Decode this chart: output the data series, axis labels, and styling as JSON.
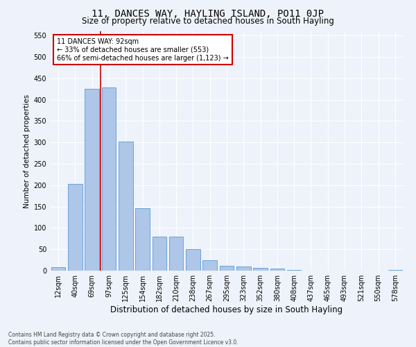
{
  "title": "11, DANCES WAY, HAYLING ISLAND, PO11 0JP",
  "subtitle": "Size of property relative to detached houses in South Hayling",
  "xlabel": "Distribution of detached houses by size in South Hayling",
  "ylabel": "Number of detached properties",
  "bar_labels": [
    "12sqm",
    "40sqm",
    "69sqm",
    "97sqm",
    "125sqm",
    "154sqm",
    "182sqm",
    "210sqm",
    "238sqm",
    "267sqm",
    "295sqm",
    "323sqm",
    "352sqm",
    "380sqm",
    "408sqm",
    "437sqm",
    "465sqm",
    "493sqm",
    "521sqm",
    "550sqm",
    "578sqm"
  ],
  "bar_values": [
    8,
    203,
    425,
    428,
    302,
    146,
    80,
    80,
    50,
    24,
    11,
    10,
    7,
    5,
    2,
    0,
    0,
    0,
    0,
    0,
    1
  ],
  "bar_color": "#aec6e8",
  "bar_edge_color": "#5b9bd5",
  "annotation_text": "11 DANCES WAY: 92sqm\n← 33% of detached houses are smaller (553)\n66% of semi-detached houses are larger (1,123) →",
  "annotation_box_color": "#ffffff",
  "annotation_box_edge": "#cc0000",
  "vline_color": "#cc0000",
  "vline_x": 2.5,
  "ylim": [
    0,
    560
  ],
  "yticks": [
    0,
    50,
    100,
    150,
    200,
    250,
    300,
    350,
    400,
    450,
    500,
    550
  ],
  "footer_line1": "Contains HM Land Registry data © Crown copyright and database right 2025.",
  "footer_line2": "Contains public sector information licensed under the Open Government Licence v3.0.",
  "bg_color": "#eef2fa",
  "grid_color": "#ffffff",
  "title_fontsize": 10,
  "subtitle_fontsize": 8.5,
  "xlabel_fontsize": 8.5,
  "ylabel_fontsize": 7.5,
  "annotation_fontsize": 7,
  "tick_fontsize": 7,
  "footer_fontsize": 5.5
}
